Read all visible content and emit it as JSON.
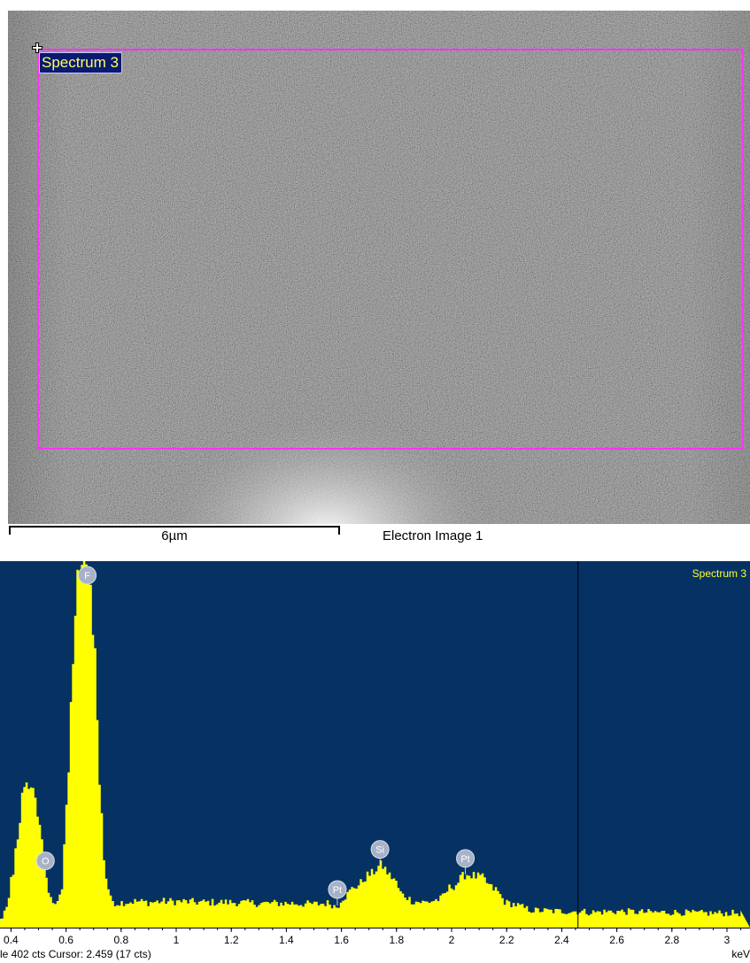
{
  "electron_image": {
    "title": "Electron Image 1",
    "scale_bar_label": "6µm",
    "roi_label": "Spectrum 3",
    "colors": {
      "roi_outline": "#ff33ff",
      "roi_label_bg": "#0a1a6e",
      "roi_label_text": "#ffff66"
    }
  },
  "spectrum": {
    "name": "Spectrum 3",
    "status_text": "le 402 cts Cursor: 2.459  (17 cts)",
    "axis_unit": "keV",
    "peak_labels": [
      {
        "element": "O",
        "kev": 0.525
      },
      {
        "element": "F",
        "kev": 0.677
      },
      {
        "element": "Pt",
        "kev": 1.585
      },
      {
        "element": "Si",
        "kev": 1.74
      },
      {
        "element": "Pt",
        "kev": 2.05
      }
    ],
    "colors": {
      "background": "#063263",
      "fill": "#ffff00",
      "marker_badge": "#a7b2c8"
    }
  },
  "chart_data": {
    "type": "area",
    "title": "Spectrum 3",
    "xlabel": "keV",
    "ylabel": "",
    "xlim": [
      0.3,
      3.05
    ],
    "ylim": [
      0,
      402
    ],
    "x_ticks": [
      "0.4",
      "0.6",
      "0.8",
      "1",
      "1.2",
      "1.4",
      "1.6",
      "1.8",
      "2",
      "2.2",
      "2.4",
      "2.6",
      "2.8",
      "3"
    ],
    "cursor_kev": 2.459,
    "cursor_counts": 17,
    "full_scale_counts": 402,
    "series": [
      {
        "name": "Spectrum 3",
        "x": [
          0.3,
          0.32,
          0.34,
          0.36,
          0.38,
          0.4,
          0.42,
          0.44,
          0.46,
          0.48,
          0.5,
          0.52,
          0.54,
          0.56,
          0.58,
          0.6,
          0.62,
          0.64,
          0.66,
          0.68,
          0.7,
          0.72,
          0.74,
          0.76,
          0.78,
          0.8,
          0.85,
          0.9,
          0.95,
          1.0,
          1.1,
          1.2,
          1.3,
          1.4,
          1.5,
          1.55,
          1.58,
          1.6,
          1.65,
          1.7,
          1.74,
          1.78,
          1.82,
          1.86,
          1.9,
          1.95,
          2.0,
          2.05,
          2.1,
          2.15,
          2.2,
          2.3,
          2.4,
          2.46,
          2.5,
          2.6,
          2.7,
          2.8,
          2.9,
          3.0,
          3.05
        ],
        "y": [
          140,
          60,
          10,
          6,
          20,
          55,
          100,
          148,
          158,
          150,
          115,
          60,
          30,
          28,
          40,
          140,
          290,
          395,
          402,
          395,
          310,
          150,
          55,
          30,
          26,
          27,
          28,
          27,
          28,
          28,
          27,
          27,
          26,
          26,
          25,
          26,
          22,
          32,
          45,
          58,
          68,
          55,
          35,
          28,
          27,
          30,
          45,
          58,
          55,
          42,
          26,
          18,
          17,
          17,
          16,
          17,
          16,
          16,
          15,
          15,
          15
        ]
      }
    ]
  }
}
